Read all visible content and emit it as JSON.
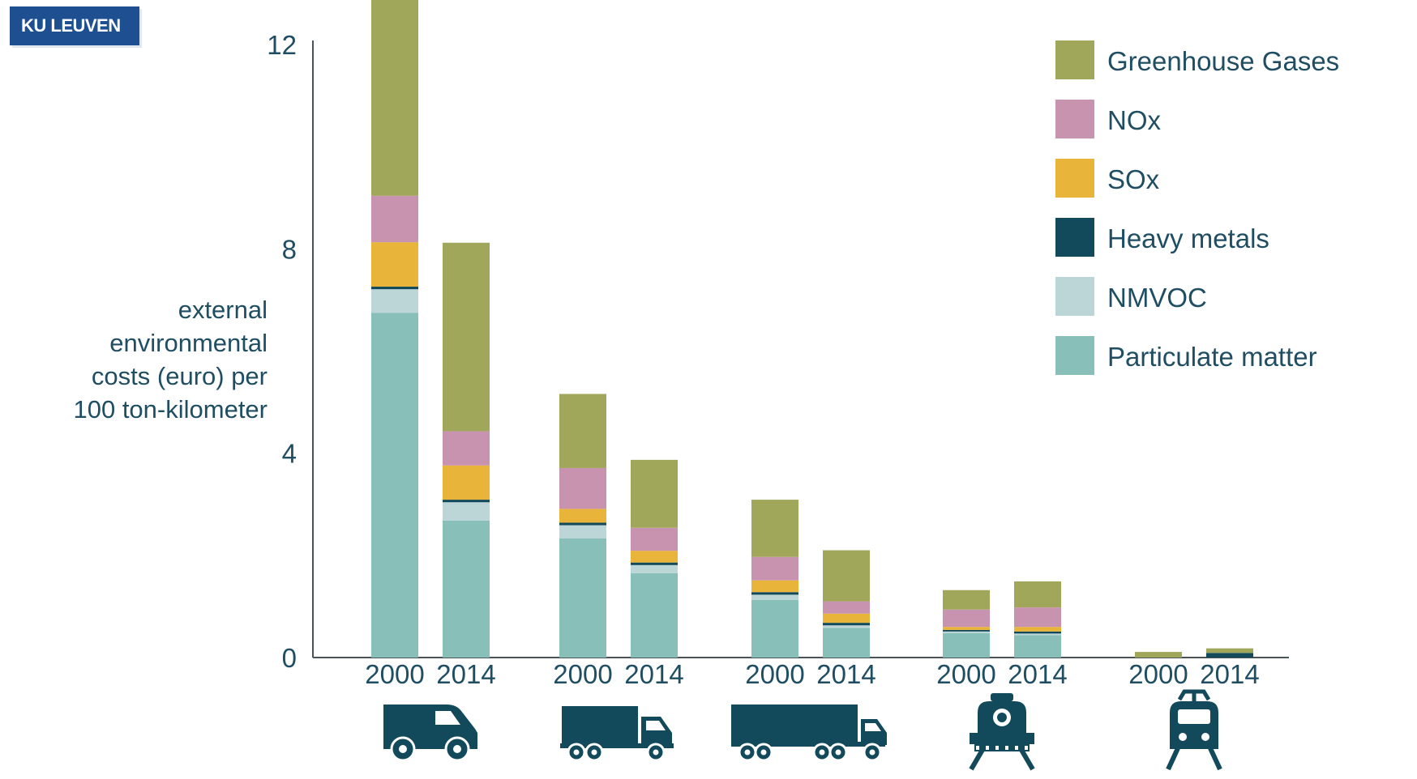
{
  "logo": {
    "text": "KU LEUVEN"
  },
  "chart_data": {
    "type": "bar",
    "stacked": true,
    "title": "",
    "xlabel": "",
    "ylabel": [
      "external",
      "environmental",
      "costs (euro) per",
      "100 ton-kilometer"
    ],
    "ylim": [
      0,
      12
    ],
    "yticks": [
      "0",
      "4",
      "8",
      "12"
    ],
    "grid": false,
    "legend_position": "top-right",
    "groups": [
      {
        "icon": "van-icon",
        "categories": [
          "2000",
          "2014"
        ]
      },
      {
        "icon": "small-truck-icon",
        "categories": [
          "2000",
          "2014"
        ]
      },
      {
        "icon": "tractor-trailer-icon",
        "categories": [
          "2000",
          "2014"
        ]
      },
      {
        "icon": "locomotive-icon",
        "categories": [
          "2000",
          "2014"
        ]
      },
      {
        "icon": "electric-train-icon",
        "categories": [
          "2000",
          "2014"
        ]
      }
    ],
    "series": [
      {
        "name": "Particulate matter",
        "color": "#88bfb9",
        "values": [
          6.75,
          2.68,
          2.33,
          1.65,
          1.13,
          0.58,
          0.48,
          0.44,
          0.0,
          0.0
        ]
      },
      {
        "name": "NMVOC",
        "color": "#bcd6d8",
        "values": [
          0.46,
          0.36,
          0.26,
          0.16,
          0.1,
          0.05,
          0.03,
          0.03,
          0.0,
          0.0
        ]
      },
      {
        "name": "Heavy metals",
        "color": "#124a5b",
        "values": [
          0.05,
          0.05,
          0.05,
          0.05,
          0.05,
          0.05,
          0.03,
          0.04,
          0.0,
          0.09
        ]
      },
      {
        "name": "SOx",
        "color": "#e8b43a",
        "values": [
          0.87,
          0.67,
          0.27,
          0.23,
          0.23,
          0.18,
          0.06,
          0.09,
          0.0,
          0.0
        ]
      },
      {
        "name": "NOx",
        "color": "#c893ae",
        "values": [
          0.91,
          0.67,
          0.8,
          0.45,
          0.46,
          0.24,
          0.34,
          0.38,
          0.0,
          0.0
        ]
      },
      {
        "name": "Greenhouse Gases",
        "color": "#a0a75a",
        "values": [
          4.16,
          3.69,
          1.45,
          1.33,
          1.12,
          1.0,
          0.38,
          0.51,
          0.11,
          0.09
        ]
      }
    ]
  }
}
